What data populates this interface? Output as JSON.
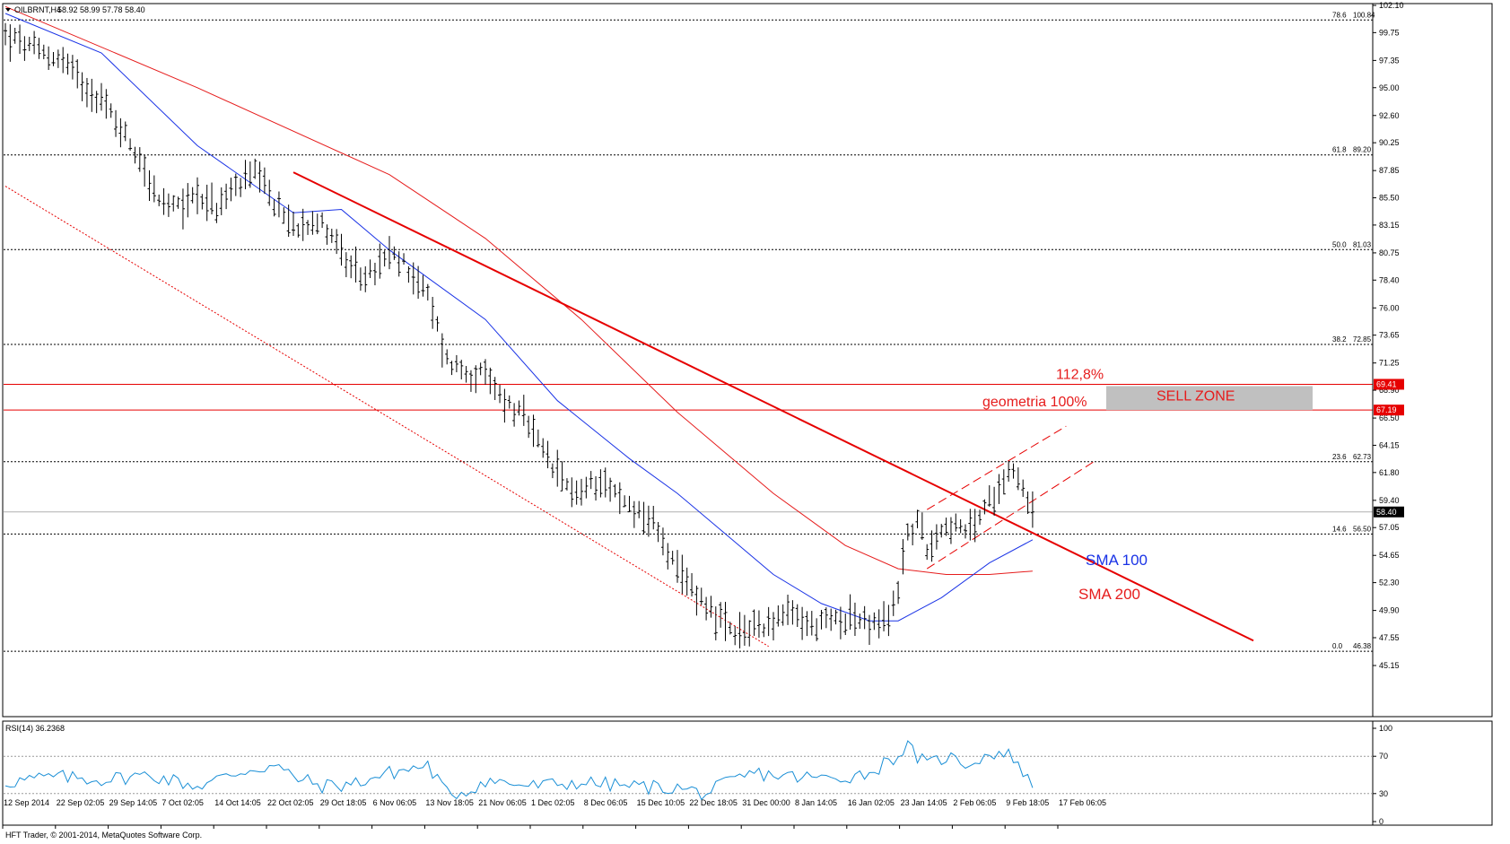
{
  "header": {
    "symbol": "OILBRNT,H4",
    "ohlc": "58.92 58.99 57.78 58.40",
    "dropdown_icon": "triangle-down-icon"
  },
  "footer": {
    "copyright": "HFT Trader, © 2001-2014, MetaQuotes Software Corp."
  },
  "colors": {
    "background": "#ffffff",
    "candles": "#000000",
    "sma100": "#1a33e6",
    "sma200": "#e61c1c",
    "trendline": "#e60000",
    "fib_lines": "#000000",
    "sell_zone": "#c0c0c0",
    "rsi": "#1a8fd6",
    "label_box_red": "#e60000",
    "label_box_black": "#000000"
  },
  "chart_data": [
    {
      "type": "candlestick",
      "title": "OILBRNT,H4",
      "ylim": [
        45.15,
        102.1
      ],
      "y_ticks": [
        "102.10",
        "99.75",
        "97.35",
        "95.00",
        "92.60",
        "90.25",
        "87.85",
        "85.50",
        "83.15",
        "80.75",
        "78.40",
        "76.00",
        "73.65",
        "71.25",
        "68.90",
        "66.50",
        "64.15",
        "61.80",
        "59.40",
        "57.05",
        "54.65",
        "52.30",
        "49.90",
        "47.55",
        "45.15"
      ],
      "x_ticks": [
        "12 Sep 2014",
        "22 Sep 02:05",
        "29 Sep 14:05",
        "7 Oct 02:05",
        "14 Oct 14:05",
        "22 Oct 02:05",
        "29 Oct 18:05",
        "6 Nov 06:05",
        "13 Nov 18:05",
        "21 Nov 06:05",
        "1 Dec 02:05",
        "8 Dec 06:05",
        "15 Dec 10:05",
        "22 Dec 18:05",
        "31 Dec 00:00",
        "8 Jan 14:05",
        "16 Jan 02:05",
        "23 Jan 14:05",
        "2 Feb 06:05",
        "9 Feb 18:05",
        "17 Feb 06:05"
      ],
      "price_path": [
        [
          0,
          99.5
        ],
        [
          6,
          98.2
        ],
        [
          12,
          97.4
        ],
        [
          16,
          95.5
        ],
        [
          20,
          94.0
        ],
        [
          24,
          91.5
        ],
        [
          28,
          89.0
        ],
        [
          32,
          85.0
        ],
        [
          36,
          84.5
        ],
        [
          40,
          86.0
        ],
        [
          44,
          84.5
        ],
        [
          48,
          86.5
        ],
        [
          52,
          87.5
        ],
        [
          56,
          85.0
        ],
        [
          60,
          83.0
        ],
        [
          64,
          83.8
        ],
        [
          68,
          82.5
        ],
        [
          72,
          79.0
        ],
        [
          76,
          78.8
        ],
        [
          80,
          80.5
        ],
        [
          84,
          79.5
        ],
        [
          88,
          77.0
        ],
        [
          92,
          71.5
        ],
        [
          96,
          70.5
        ],
        [
          100,
          70.0
        ],
        [
          104,
          68.0
        ],
        [
          108,
          66.5
        ],
        [
          112,
          63.5
        ],
        [
          116,
          61.0
        ],
        [
          120,
          60.0
        ],
        [
          124,
          61.5
        ],
        [
          128,
          59.5
        ],
        [
          132,
          58.5
        ],
        [
          136,
          57.0
        ],
        [
          140,
          53.0
        ],
        [
          144,
          51.5
        ],
        [
          148,
          49.5
        ],
        [
          152,
          47.5
        ],
        [
          156,
          48.5
        ],
        [
          160,
          49.0
        ],
        [
          164,
          49.5
        ],
        [
          168,
          48.5
        ],
        [
          172,
          49.0
        ],
        [
          176,
          49.5
        ],
        [
          180,
          48.5
        ],
        [
          184,
          49.0
        ],
        [
          186,
          52.0
        ],
        [
          188,
          56.5
        ],
        [
          190,
          57.5
        ],
        [
          192,
          55.5
        ],
        [
          196,
          57.5
        ],
        [
          200,
          56.5
        ],
        [
          204,
          58.5
        ],
        [
          206,
          60.0
        ],
        [
          208,
          61.5
        ],
        [
          210,
          62.3
        ],
        [
          212,
          60.5
        ],
        [
          214,
          58.4
        ]
      ],
      "n_bars": 215,
      "last_price": "58.40",
      "sma100_path": [
        [
          0,
          101.4
        ],
        [
          20,
          98.0
        ],
        [
          40,
          90.0
        ],
        [
          60,
          84.2
        ],
        [
          70,
          84.5
        ],
        [
          80,
          81.0
        ],
        [
          100,
          75.0
        ],
        [
          115,
          68.0
        ],
        [
          130,
          63.0
        ],
        [
          140,
          60.0
        ],
        [
          150,
          56.5
        ],
        [
          160,
          53.0
        ],
        [
          170,
          50.5
        ],
        [
          180,
          49.0
        ],
        [
          186,
          49.0
        ],
        [
          195,
          51.0
        ],
        [
          205,
          54.0
        ],
        [
          214,
          56.0
        ]
      ],
      "sma200_path": [
        [
          0,
          102.0
        ],
        [
          40,
          95.0
        ],
        [
          80,
          87.5
        ],
        [
          100,
          82.0
        ],
        [
          120,
          75.0
        ],
        [
          140,
          67.0
        ],
        [
          160,
          60.0
        ],
        [
          175,
          55.5
        ],
        [
          186,
          53.5
        ],
        [
          196,
          53.0
        ],
        [
          205,
          53.0
        ],
        [
          214,
          53.3
        ]
      ],
      "trendline": [
        [
          60,
          87.7
        ],
        [
          260,
          47.3
        ]
      ],
      "channel_lower_dotted": [
        [
          0,
          86.5
        ],
        [
          159,
          46.8
        ]
      ],
      "channel_upper_dashed": [
        [
          192,
          58.6
        ],
        [
          221,
          65.8
        ]
      ],
      "channel_lower_dashed": [
        [
          192,
          53.5
        ],
        [
          227,
          62.8
        ]
      ],
      "fib_levels": [
        {
          "label": "78.6",
          "value": "100.84",
          "price": 100.84,
          "box": false
        },
        {
          "label": "61.8",
          "value": "89.20",
          "price": 89.2,
          "box": false
        },
        {
          "label": "50.0",
          "value": "81.03",
          "price": 81.03,
          "box": false
        },
        {
          "label": "38.2",
          "value": "72.85",
          "price": 72.85,
          "box": false
        },
        {
          "label": "23.6",
          "value": "62.73",
          "price": 62.73,
          "box": false
        },
        {
          "label": "14.6",
          "value": "56.50",
          "price": 56.5,
          "box": false
        },
        {
          "label": "0.0",
          "value": "46.38",
          "price": 46.38,
          "box": false
        }
      ],
      "red_levels": [
        {
          "value": "69.41",
          "price": 69.41
        },
        {
          "value": "67.19",
          "price": 67.19
        }
      ],
      "annotations": {
        "level_112": "112,8%",
        "level_100": "geometria 100%",
        "sell_zone": "SELL ZONE",
        "sma100": "SMA 100",
        "sma200": "SMA 200"
      },
      "sell_zone_range": [
        67.19,
        69.41
      ]
    },
    {
      "type": "line",
      "title": "RSI(14) 36.2368",
      "ylim": [
        0,
        100
      ],
      "y_ticks": [
        "100",
        "70",
        "30",
        "0"
      ],
      "reference_levels": [
        70,
        30
      ],
      "rsi_path": [
        [
          0,
          42
        ],
        [
          10,
          48
        ],
        [
          20,
          45
        ],
        [
          30,
          50
        ],
        [
          40,
          38
        ],
        [
          50,
          55
        ],
        [
          56,
          60
        ],
        [
          60,
          48
        ],
        [
          66,
          38
        ],
        [
          72,
          40
        ],
        [
          80,
          52
        ],
        [
          88,
          60
        ],
        [
          92,
          30
        ],
        [
          96,
          32
        ],
        [
          100,
          44
        ],
        [
          110,
          38
        ],
        [
          120,
          42
        ],
        [
          130,
          38
        ],
        [
          140,
          36
        ],
        [
          146,
          30
        ],
        [
          150,
          40
        ],
        [
          156,
          52
        ],
        [
          164,
          48
        ],
        [
          172,
          46
        ],
        [
          180,
          52
        ],
        [
          186,
          72
        ],
        [
          188,
          80
        ],
        [
          192,
          60
        ],
        [
          196,
          70
        ],
        [
          200,
          62
        ],
        [
          206,
          74
        ],
        [
          210,
          70
        ],
        [
          214,
          36
        ]
      ]
    }
  ]
}
